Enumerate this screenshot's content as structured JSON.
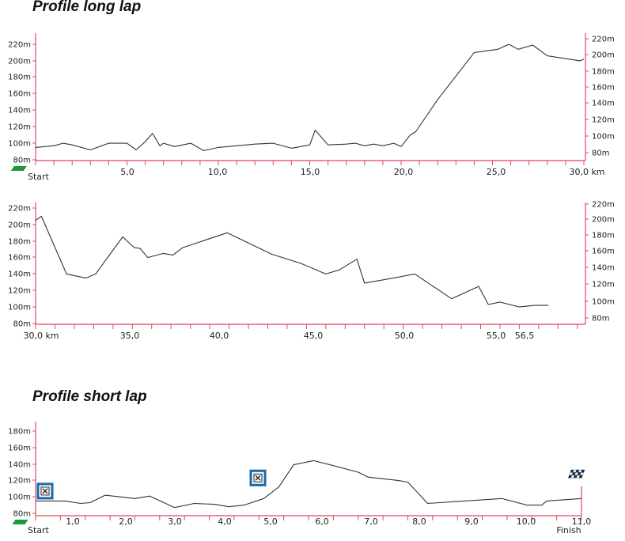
{
  "titles": {
    "long": "Profile long lap",
    "short": "Profile short lap"
  },
  "colors": {
    "axis": "#e0465a",
    "line": "#333333",
    "flag": "#1a9a3a",
    "marker": "#1769aa"
  },
  "chart_data": [
    {
      "type": "line",
      "title": "Profile long lap",
      "unit": "m",
      "xlim": [
        0,
        30
      ],
      "ylim": [
        80,
        225
      ],
      "y_ticks_left": [
        "220m",
        "200m",
        "180m",
        "160m",
        "140m",
        "120m",
        "100m",
        "80m"
      ],
      "y_ticks_right": [
        "220m",
        "200m",
        "180m",
        "160m",
        "140m",
        "120m",
        "100m",
        "80m"
      ],
      "x_ticks": [
        "5,0",
        "10,0",
        "15,0",
        "20,0",
        "25,0",
        "30,0 km"
      ],
      "start_label": "Start",
      "x": [
        0,
        1,
        1.5,
        2,
        3,
        4,
        5,
        5.5,
        6,
        6.4,
        6.8,
        7,
        7.6,
        8.5,
        9.2,
        10,
        11,
        12,
        13,
        14,
        15,
        15.3,
        16,
        17,
        17.5,
        18,
        18.5,
        19,
        19.6,
        20,
        20.5,
        20.8,
        22,
        24,
        25.3,
        25.9,
        26.4,
        27.2,
        28,
        29.8,
        30
      ],
      "y": [
        95,
        97,
        100,
        98,
        92,
        100,
        100,
        92,
        102,
        112,
        97,
        100,
        96,
        100,
        91,
        95,
        97,
        99,
        100,
        94,
        98,
        116,
        98,
        99,
        100,
        97,
        99,
        97,
        100,
        96,
        110,
        114,
        153,
        210,
        214,
        220,
        214,
        219,
        206,
        200,
        202
      ]
    },
    {
      "type": "line",
      "unit": "m",
      "xlim": [
        30,
        58.5
      ],
      "ylim": [
        80,
        225
      ],
      "y_ticks_left": [
        "220m",
        "200m",
        "180m",
        "160m",
        "140m",
        "120m",
        "100m",
        "80m"
      ],
      "y_ticks_right": [
        "220m",
        "200m",
        "180m",
        "160m",
        "140m",
        "120m",
        "100m",
        "80m"
      ],
      "x_ticks": [
        "30,0 km",
        "35,0",
        "40,0",
        "45,0",
        "50,0",
        "55,0",
        "56,5"
      ],
      "x": [
        30,
        30.3,
        31.6,
        32.6,
        33.1,
        34.5,
        35.1,
        35.4,
        35.8,
        36.6,
        37.1,
        37.6,
        39.9,
        42.2,
        43.7,
        45.0,
        45.7,
        46.6,
        47.0,
        48.0,
        49.6,
        51.5,
        52.9,
        53.4,
        54.0,
        55.0,
        55.8,
        56.5
      ],
      "y": [
        205,
        210,
        140,
        135,
        140,
        185,
        172,
        171,
        160,
        165,
        163,
        172,
        190,
        164,
        153,
        140,
        145,
        158,
        129,
        133,
        140,
        110,
        125,
        103,
        106,
        100,
        102,
        102
      ]
    },
    {
      "type": "line",
      "title": "Profile short lap",
      "unit": "m",
      "xlim": [
        0,
        11
      ],
      "ylim": [
        80,
        190
      ],
      "y_ticks_left": [
        "180m",
        "160m",
        "140m",
        "120m",
        "100m",
        "80m"
      ],
      "x_ticks": [
        "1,0",
        "2,0",
        "3,0",
        "4,0",
        "5,0",
        "6,0",
        "7,0",
        "8,0",
        "9,0",
        "10,0",
        "11,0"
      ],
      "start_label": "Start",
      "finish_label": "Finish",
      "x": [
        0,
        0.6,
        0.9,
        1.1,
        1.4,
        2.0,
        2.3,
        2.8,
        3.2,
        3.6,
        3.9,
        4.2,
        4.6,
        4.9,
        5.2,
        5.6,
        6.0,
        6.5,
        6.7,
        7.3,
        7.5,
        7.9,
        9.4,
        9.9,
        10.2,
        10.3,
        11
      ],
      "y": [
        95,
        95,
        92,
        93,
        102,
        98,
        101,
        87,
        92,
        91,
        88,
        90,
        98,
        112,
        139,
        144,
        138,
        130,
        124,
        120,
        118,
        92,
        98,
        90,
        90,
        95,
        98
      ],
      "markers": [
        {
          "x": 0.15,
          "y": 107
        },
        {
          "x": 4.7,
          "y": 123
        }
      ]
    }
  ]
}
